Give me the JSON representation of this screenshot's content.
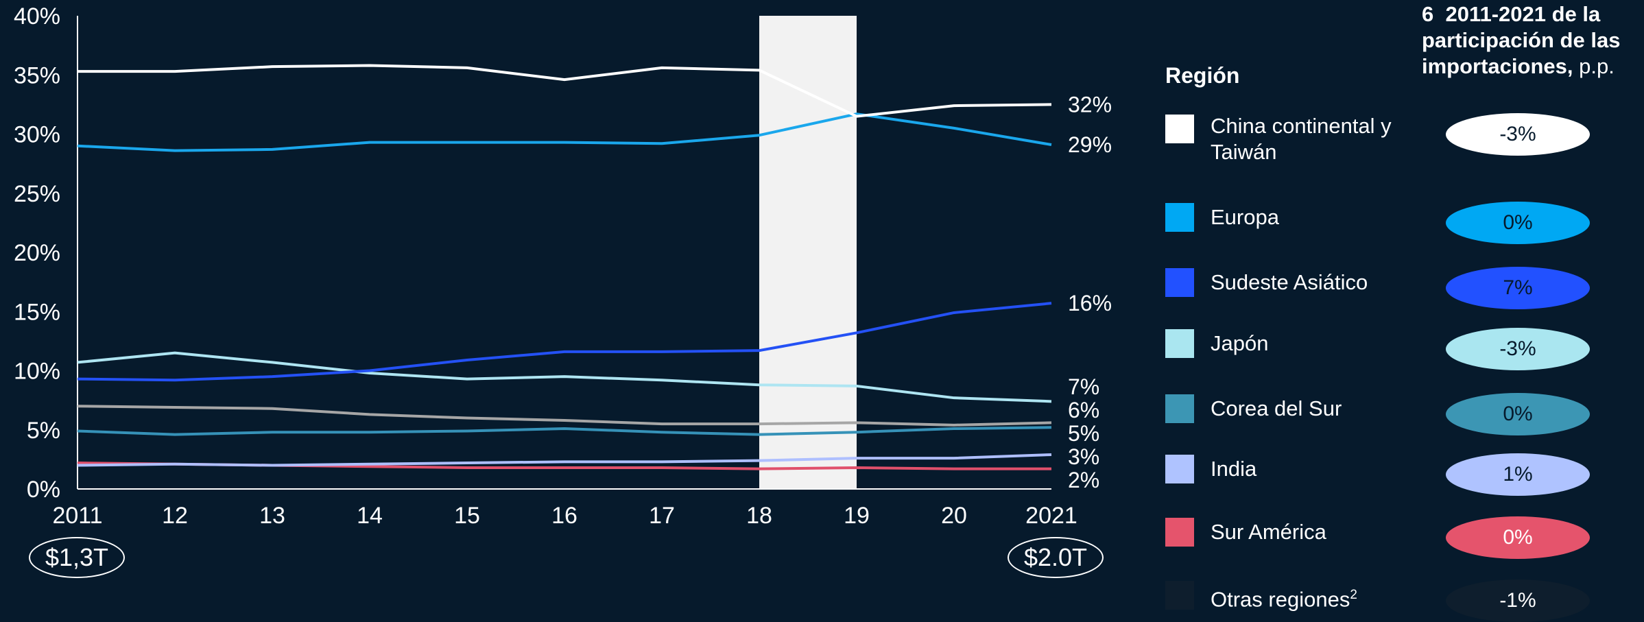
{
  "chart_data": {
    "type": "line",
    "x": [
      "2011",
      "12",
      "13",
      "14",
      "15",
      "16",
      "17",
      "18",
      "19",
      "20",
      "2021"
    ],
    "yticks": [
      "0%",
      "5%",
      "10%",
      "15%",
      "20%",
      "25%",
      "30%",
      "35%",
      "40%"
    ],
    "ylim": [
      0,
      40
    ],
    "highlight_band": [
      "18",
      "19"
    ],
    "series": [
      {
        "name": "China continental y Taiwán",
        "color": "#ffffff",
        "values": [
          35.3,
          35.3,
          35.7,
          35.8,
          35.6,
          34.6,
          35.6,
          35.4,
          31.5,
          32.4,
          32.5
        ],
        "end_label": "32%"
      },
      {
        "name": "Europa",
        "color": "#1aa7ec",
        "values": [
          29.0,
          28.6,
          28.7,
          29.3,
          29.3,
          29.3,
          29.2,
          29.9,
          31.7,
          30.5,
          29.1
        ],
        "end_label": "29%"
      },
      {
        "name": "Sudeste Asiático",
        "color": "#2451f5",
        "values": [
          9.3,
          9.2,
          9.5,
          10.0,
          10.9,
          11.6,
          11.6,
          11.7,
          13.2,
          14.9,
          15.7
        ],
        "end_label": "16%"
      },
      {
        "name": "Japón",
        "color": "#aee5f2",
        "values": [
          10.7,
          11.5,
          10.7,
          9.8,
          9.3,
          9.5,
          9.2,
          8.8,
          8.7,
          7.7,
          7.4
        ],
        "end_label": "7%"
      },
      {
        "name": "Otras regiones",
        "color": "#a6a6a6",
        "values": [
          7.0,
          6.9,
          6.8,
          6.3,
          6.0,
          5.8,
          5.5,
          5.5,
          5.6,
          5.4,
          5.6
        ],
        "end_label": "6%"
      },
      {
        "name": "Corea del Sur",
        "color": "#3692b8",
        "values": [
          4.9,
          4.6,
          4.8,
          4.8,
          4.9,
          5.1,
          4.8,
          4.6,
          4.8,
          5.1,
          5.2
        ],
        "end_label": "5%"
      },
      {
        "name": "India",
        "color": "#aebfff",
        "values": [
          2.0,
          2.1,
          2.0,
          2.1,
          2.2,
          2.3,
          2.3,
          2.4,
          2.6,
          2.6,
          2.9
        ],
        "end_label": "3%"
      },
      {
        "name": "Sur América",
        "color": "#e0506b",
        "values": [
          2.2,
          2.1,
          2.0,
          1.9,
          1.8,
          1.8,
          1.8,
          1.7,
          1.8,
          1.7,
          1.7
        ],
        "end_label": "2%"
      }
    ]
  },
  "totals": {
    "start": "$1,3T",
    "end": "$2.0T"
  },
  "side": {
    "footnote_num": "6",
    "title_bold": "2011-2021 de la participación de las importaciones,",
    "title_unit": " p.p."
  },
  "legend": {
    "title": "Región",
    "items": [
      {
        "label": "China continental y Taiwán",
        "change": "-3%",
        "color": "#ffffff",
        "text_color": "#061a2c"
      },
      {
        "label": "Europa",
        "change": "0%",
        "color": "#00a8f3",
        "text_color": "#061a2c"
      },
      {
        "label": "Sudeste Asiático",
        "change": "7%",
        "color": "#2251ff",
        "text_color": "#061a2c"
      },
      {
        "label": "Japón",
        "change": "-3%",
        "color": "#aae6f0",
        "text_color": "#061a2c"
      },
      {
        "label": "Corea del Sur",
        "change": "0%",
        "color": "#3c96b4",
        "text_color": "#061a2c"
      },
      {
        "label": "India",
        "change": "1%",
        "color": "#afc3ff",
        "text_color": "#061a2c"
      },
      {
        "label": "Sur América",
        "change": "0%",
        "color": "#e5546c",
        "text_color": "#ffffff"
      },
      {
        "label": "Otras regiones",
        "sup": "2",
        "change": "-1%",
        "color": "#0e1e2d",
        "text_color": "#ffffff"
      }
    ]
  }
}
